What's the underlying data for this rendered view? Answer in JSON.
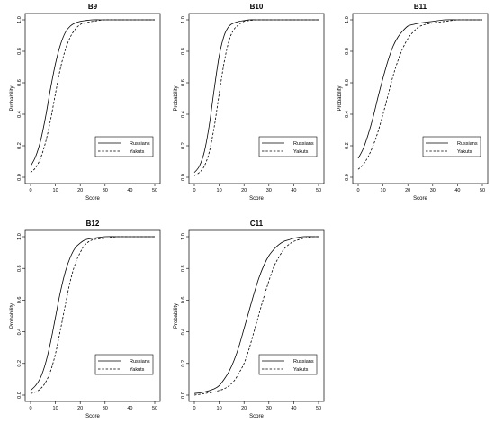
{
  "chart_data": [
    {
      "type": "line",
      "title": "B9",
      "xlabel": "Score",
      "ylabel": "Probability",
      "xlim": [
        0,
        50
      ],
      "ylim": [
        0,
        1
      ],
      "xticks": [
        "0",
        "10",
        "20",
        "30",
        "40",
        "50"
      ],
      "yticks": [
        "0.0",
        "0.2",
        "0.4",
        "0.6",
        "0.8",
        "1.0"
      ],
      "legend_position": "bottom-right",
      "series": [
        {
          "name": "Russians",
          "line_style": "solid",
          "x": [
            0,
            2,
            4,
            6,
            8,
            10,
            12,
            14,
            16,
            18,
            20,
            22,
            25,
            30,
            35,
            40,
            45,
            50
          ],
          "y": [
            0.07,
            0.13,
            0.23,
            0.38,
            0.56,
            0.72,
            0.84,
            0.92,
            0.96,
            0.98,
            0.99,
            0.995,
            1.0,
            1.0,
            1.0,
            1.0,
            1.0,
            1.0
          ]
        },
        {
          "name": "Yakuts",
          "line_style": "dashed",
          "x": [
            0,
            2,
            4,
            6,
            8,
            10,
            12,
            14,
            16,
            18,
            20,
            22,
            25,
            30,
            35,
            40,
            45,
            50
          ],
          "y": [
            0.03,
            0.06,
            0.12,
            0.22,
            0.36,
            0.53,
            0.69,
            0.81,
            0.89,
            0.94,
            0.97,
            0.98,
            0.99,
            1.0,
            1.0,
            1.0,
            1.0,
            1.0
          ]
        }
      ]
    },
    {
      "type": "line",
      "title": "B10",
      "xlabel": "Score",
      "ylabel": "Probability",
      "xlim": [
        0,
        50
      ],
      "ylim": [
        0,
        1
      ],
      "xticks": [
        "0",
        "10",
        "20",
        "30",
        "40",
        "50"
      ],
      "yticks": [
        "0.0",
        "0.2",
        "0.4",
        "0.6",
        "0.8",
        "1.0"
      ],
      "legend_position": "bottom-right",
      "series": [
        {
          "name": "Russians",
          "line_style": "solid",
          "x": [
            0,
            2,
            4,
            6,
            8,
            10,
            12,
            14,
            16,
            18,
            20,
            22,
            25,
            30,
            35,
            40,
            45,
            50
          ],
          "y": [
            0.03,
            0.07,
            0.16,
            0.33,
            0.56,
            0.77,
            0.9,
            0.96,
            0.98,
            0.99,
            0.995,
            1.0,
            1.0,
            1.0,
            1.0,
            1.0,
            1.0,
            1.0
          ]
        },
        {
          "name": "Yakuts",
          "line_style": "dashed",
          "x": [
            0,
            2,
            4,
            6,
            8,
            10,
            12,
            14,
            16,
            18,
            20,
            22,
            25,
            30,
            35,
            40,
            45,
            50
          ],
          "y": [
            0.01,
            0.03,
            0.07,
            0.16,
            0.32,
            0.53,
            0.73,
            0.87,
            0.94,
            0.97,
            0.99,
            0.995,
            1.0,
            1.0,
            1.0,
            1.0,
            1.0,
            1.0
          ]
        }
      ]
    },
    {
      "type": "line",
      "title": "B11",
      "xlabel": "Score",
      "ylabel": "Probability",
      "xlim": [
        0,
        50
      ],
      "ylim": [
        0,
        1
      ],
      "xticks": [
        "0",
        "10",
        "20",
        "30",
        "40",
        "50"
      ],
      "yticks": [
        "0.0",
        "0.2",
        "0.4",
        "0.6",
        "0.8",
        "1.0"
      ],
      "legend_position": "bottom-right",
      "series": [
        {
          "name": "Russians",
          "line_style": "solid",
          "x": [
            0,
            2,
            4,
            6,
            8,
            10,
            12,
            14,
            16,
            18,
            20,
            22,
            25,
            30,
            35,
            40,
            45,
            50
          ],
          "y": [
            0.12,
            0.18,
            0.27,
            0.38,
            0.51,
            0.63,
            0.74,
            0.83,
            0.89,
            0.93,
            0.96,
            0.97,
            0.98,
            0.99,
            1.0,
            1.0,
            1.0,
            1.0
          ]
        },
        {
          "name": "Yakuts",
          "line_style": "dashed",
          "x": [
            0,
            2,
            4,
            6,
            8,
            10,
            12,
            14,
            16,
            18,
            20,
            22,
            25,
            30,
            35,
            40,
            45,
            50
          ],
          "y": [
            0.05,
            0.08,
            0.13,
            0.2,
            0.29,
            0.4,
            0.52,
            0.64,
            0.74,
            0.82,
            0.88,
            0.92,
            0.96,
            0.98,
            0.99,
            1.0,
            1.0,
            1.0
          ]
        }
      ]
    },
    {
      "type": "line",
      "title": "B12",
      "xlabel": "Score",
      "ylabel": "Probability",
      "xlim": [
        0,
        50
      ],
      "ylim": [
        0,
        1
      ],
      "xticks": [
        "0",
        "10",
        "20",
        "30",
        "40",
        "50"
      ],
      "yticks": [
        "0.0",
        "0.2",
        "0.4",
        "0.6",
        "0.8",
        "1.0"
      ],
      "legend_position": "bottom-right",
      "series": [
        {
          "name": "Russians",
          "line_style": "solid",
          "x": [
            0,
            2,
            4,
            6,
            8,
            10,
            12,
            14,
            16,
            18,
            20,
            22,
            25,
            30,
            35,
            40,
            45,
            50
          ],
          "y": [
            0.03,
            0.06,
            0.11,
            0.2,
            0.33,
            0.49,
            0.65,
            0.78,
            0.87,
            0.93,
            0.96,
            0.98,
            0.99,
            1.0,
            1.0,
            1.0,
            1.0,
            1.0
          ]
        },
        {
          "name": "Yakuts",
          "line_style": "dashed",
          "x": [
            0,
            2,
            4,
            6,
            8,
            10,
            12,
            14,
            16,
            18,
            20,
            22,
            25,
            30,
            35,
            40,
            45,
            50
          ],
          "y": [
            0.01,
            0.02,
            0.04,
            0.08,
            0.15,
            0.26,
            0.41,
            0.57,
            0.72,
            0.83,
            0.9,
            0.95,
            0.98,
            0.99,
            1.0,
            1.0,
            1.0,
            1.0
          ]
        }
      ]
    },
    {
      "type": "line",
      "title": "C11",
      "xlabel": "Score",
      "ylabel": "Probability",
      "xlim": [
        0,
        50
      ],
      "ylim": [
        0,
        1
      ],
      "xticks": [
        "0",
        "10",
        "20",
        "30",
        "40",
        "50"
      ],
      "yticks": [
        "0.0",
        "0.2",
        "0.4",
        "0.6",
        "0.8",
        "1.0"
      ],
      "legend_position": "bottom-right",
      "series": [
        {
          "name": "Russians",
          "line_style": "solid",
          "x": [
            0,
            4,
            8,
            10,
            12,
            14,
            16,
            18,
            20,
            22,
            24,
            26,
            28,
            30,
            32,
            34,
            36,
            38,
            40,
            44,
            48,
            50
          ],
          "y": [
            0.01,
            0.02,
            0.04,
            0.06,
            0.1,
            0.15,
            0.22,
            0.31,
            0.42,
            0.53,
            0.64,
            0.74,
            0.82,
            0.88,
            0.92,
            0.95,
            0.97,
            0.98,
            0.99,
            1.0,
            1.0,
            1.0
          ]
        },
        {
          "name": "Yakuts",
          "line_style": "dashed",
          "x": [
            0,
            4,
            8,
            10,
            12,
            14,
            16,
            18,
            20,
            22,
            24,
            26,
            28,
            30,
            32,
            34,
            36,
            38,
            40,
            44,
            48,
            50
          ],
          "y": [
            0.0,
            0.01,
            0.02,
            0.03,
            0.04,
            0.06,
            0.09,
            0.14,
            0.2,
            0.29,
            0.4,
            0.51,
            0.62,
            0.72,
            0.81,
            0.87,
            0.92,
            0.95,
            0.97,
            0.99,
            1.0,
            1.0
          ]
        }
      ]
    }
  ]
}
